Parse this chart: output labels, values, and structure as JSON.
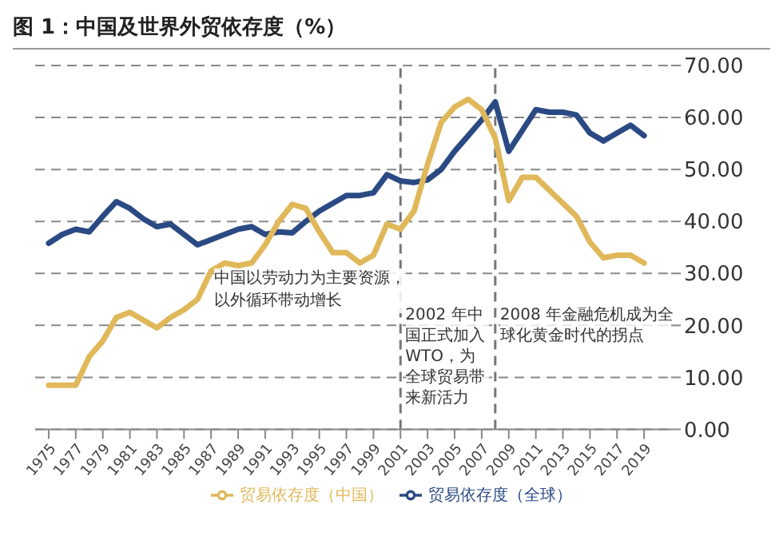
{
  "chart_data": {
    "type": "line",
    "title": "图 1：中国及世界外贸依存度（%）",
    "x": [
      1975,
      1976,
      1977,
      1978,
      1979,
      1980,
      1981,
      1982,
      1983,
      1984,
      1985,
      1986,
      1987,
      1988,
      1989,
      1990,
      1991,
      1992,
      1993,
      1994,
      1995,
      1996,
      1997,
      1998,
      1999,
      2000,
      2001,
      2002,
      2003,
      2004,
      2005,
      2006,
      2007,
      2008,
      2009,
      2010,
      2011,
      2012,
      2013,
      2014,
      2015,
      2016,
      2017,
      2018,
      2019
    ],
    "series": [
      {
        "name": "贸易依存度（全球）",
        "color": "#2b4a84",
        "values": [
          35.8,
          37.5,
          38.5,
          38,
          41,
          43.8,
          42.5,
          40.5,
          39,
          39.5,
          37.5,
          35.5,
          36.5,
          37.5,
          38.5,
          39,
          37.5,
          38,
          37.8,
          40,
          42,
          43.5,
          45,
          45,
          45.5,
          49,
          47.8,
          47.5,
          48,
          50,
          53.5,
          56.5,
          59.5,
          63,
          53.5,
          57.5,
          61.5,
          61,
          61,
          60.5,
          57,
          55.5,
          57,
          58.5,
          56.5
        ]
      },
      {
        "name": "贸易依存度（中国）",
        "color": "#e0b85a",
        "values": [
          8.5,
          8.5,
          8.5,
          14,
          17,
          21.5,
          22.5,
          21,
          19.5,
          21.5,
          23,
          25,
          30.5,
          32,
          31.5,
          32,
          35.5,
          40,
          43.3,
          42.5,
          38,
          34,
          34,
          32,
          33.5,
          39.5,
          38.5,
          42,
          51,
          59,
          62,
          63.5,
          61.5,
          56,
          44,
          48.5,
          48.5,
          46,
          43.5,
          41,
          36,
          33,
          33.5,
          33.5,
          32
        ]
      }
    ],
    "xlim": [
      1974,
      2021
    ],
    "xticks": [
      1975,
      1977,
      1979,
      1981,
      1983,
      1985,
      1987,
      1989,
      1991,
      1993,
      1995,
      1997,
      1999,
      2001,
      2003,
      2005,
      2007,
      2009,
      2011,
      2013,
      2015,
      2017,
      2019
    ],
    "ylim": [
      0,
      70
    ],
    "yticks": [
      {
        "value": 0,
        "label": "0.00"
      },
      {
        "value": 10,
        "label": "10.00"
      },
      {
        "value": 20,
        "label": "20.00"
      },
      {
        "value": 30,
        "label": "30.00"
      },
      {
        "value": 40,
        "label": "40.00"
      },
      {
        "value": 50,
        "label": "50.00"
      },
      {
        "value": 60,
        "label": "60.00"
      },
      {
        "value": 70,
        "label": "70.00"
      }
    ],
    "grid": "y",
    "legend": "bottom",
    "marker": "none",
    "line_style": "solid",
    "ref_lines": [
      {
        "axis": "x",
        "value": 2001,
        "label": "2002 年中国正式加入WTO，为全球贸易带来新活力",
        "color": "#777777",
        "line_style": "dashed"
      },
      {
        "axis": "x",
        "value": 2008,
        "label": "2008 年金融危机成为全球化黄金时代的拐点",
        "color": "#777777",
        "line_style": "dashed"
      }
    ],
    "annotations": [
      "中国以劳动力为主要资源，以外循环带动增长"
    ]
  }
}
